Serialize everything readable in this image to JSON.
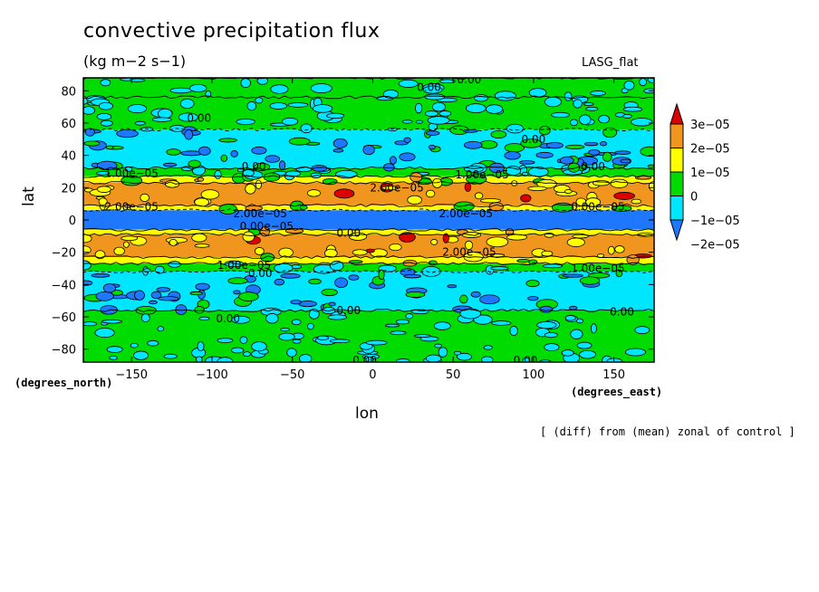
{
  "header": {
    "title": "convective precipitation flux",
    "units": "(kg m−2 s−1)",
    "model": "LASG_flat"
  },
  "axes": {
    "xlabel": "lon",
    "ylabel": "lat",
    "x_units": "(degrees_east)",
    "y_units": "(degrees_north)"
  },
  "footnote": "[ (diff) from (mean) zonal of control ]",
  "chart_data": {
    "type": "heatmap",
    "x_ticks": [
      -150,
      -100,
      -50,
      0,
      50,
      100,
      150
    ],
    "y_ticks": [
      80,
      60,
      40,
      20,
      0,
      -20,
      -40,
      -60,
      -80
    ],
    "x_tick_labels": [
      "−150",
      "−100",
      "−50",
      "0",
      "50",
      "100",
      "150"
    ],
    "y_tick_labels": [
      "80",
      "60",
      "40",
      "20",
      "0",
      "−20",
      "−40",
      "−60",
      "−80"
    ],
    "xlim": [
      -180,
      175
    ],
    "ylim": [
      -88,
      88
    ],
    "colorbar": {
      "levels": [
        -2e-05,
        -1e-05,
        0,
        1e-05,
        2e-05,
        3e-05
      ],
      "labels": [
        "3e−05",
        "2e−05",
        "1e−05",
        "0",
        "−1e−05",
        "−2e−05"
      ],
      "colors": [
        "#dd0000",
        "#f0961e",
        "#ffff00",
        "#00dc00",
        "#00e6ff",
        "#1e78ff"
      ]
    },
    "zonal_bands": [
      {
        "lat_min": 76,
        "lat_max": 88,
        "class": 3
      },
      {
        "lat_min": 56,
        "lat_max": 76,
        "class": 3
      },
      {
        "lat_min": 32,
        "lat_max": 56,
        "class": 4
      },
      {
        "lat_min": 27,
        "lat_max": 32,
        "class": 3
      },
      {
        "lat_min": 23,
        "lat_max": 27,
        "class": 2
      },
      {
        "lat_min": 9,
        "lat_max": 23,
        "class": 1
      },
      {
        "lat_min": 6,
        "lat_max": 9,
        "class": 2
      },
      {
        "lat_min": -6,
        "lat_max": 6,
        "class": 5
      },
      {
        "lat_min": -9,
        "lat_max": -6,
        "class": 2
      },
      {
        "lat_min": -23,
        "lat_max": -9,
        "class": 1
      },
      {
        "lat_min": -27,
        "lat_max": -23,
        "class": 2
      },
      {
        "lat_min": -32,
        "lat_max": -27,
        "class": 3
      },
      {
        "lat_min": -56,
        "lat_max": -32,
        "class": 4
      },
      {
        "lat_min": -88,
        "lat_max": -56,
        "class": 3
      }
    ],
    "contour_labels": [
      {
        "lon": 60,
        "lat": 87,
        "text": "0.00"
      },
      {
        "lon": 35,
        "lat": 82,
        "text": "0.00"
      },
      {
        "lon": -108,
        "lat": 63,
        "text": "0.00"
      },
      {
        "lon": 100,
        "lat": 50,
        "text": "0.00"
      },
      {
        "lon": 137,
        "lat": 33,
        "text": "0.00"
      },
      {
        "lon": -74,
        "lat": 33,
        "text": "0.00"
      },
      {
        "lon": -150,
        "lat": 29,
        "text": "1.00e−05"
      },
      {
        "lon": 68,
        "lat": 28,
        "text": "1.00e−05"
      },
      {
        "lon": 15,
        "lat": 20,
        "text": "2.00e−05"
      },
      {
        "lon": -150,
        "lat": 8,
        "text": "2.00e−05"
      },
      {
        "lon": -70,
        "lat": 4,
        "text": "2.00e−05"
      },
      {
        "lon": 58,
        "lat": 4,
        "text": "2.00e−05"
      },
      {
        "lon": 140,
        "lat": 8,
        "text": "0.00e−05"
      },
      {
        "lon": -66,
        "lat": -4,
        "text": "0.00e−05"
      },
      {
        "lon": -15,
        "lat": -8,
        "text": "0.00"
      },
      {
        "lon": 60,
        "lat": -20,
        "text": "2.00e−05"
      },
      {
        "lon": -80,
        "lat": -28,
        "text": "1.00e−05"
      },
      {
        "lon": 140,
        "lat": -30,
        "text": "1.00e−05"
      },
      {
        "lon": -70,
        "lat": -33,
        "text": "0.00"
      },
      {
        "lon": -15,
        "lat": -56,
        "text": "0.00"
      },
      {
        "lon": 155,
        "lat": -57,
        "text": "0.00"
      },
      {
        "lon": -90,
        "lat": -61,
        "text": "0.00"
      },
      {
        "lon": -5,
        "lat": -87,
        "text": "0.00"
      },
      {
        "lon": 95,
        "lat": -87,
        "text": "0.00"
      }
    ]
  }
}
